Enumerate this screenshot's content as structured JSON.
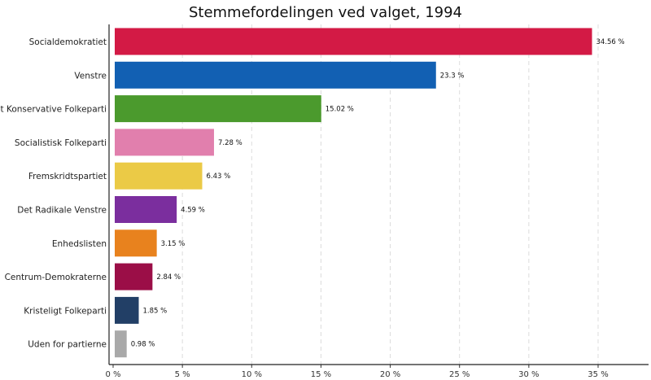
{
  "chart_data": {
    "type": "bar",
    "orientation": "horizontal",
    "title": "Stemmefordelingen ved valget, 1994",
    "xlabel": "",
    "ylabel": "",
    "xlim": [
      0,
      38
    ],
    "ticks": [
      {
        "value": 0,
        "label": "0 %"
      },
      {
        "value": 5,
        "label": "5 %"
      },
      {
        "value": 10,
        "label": "10 %"
      },
      {
        "value": 15,
        "label": "15 %"
      },
      {
        "value": 20,
        "label": "20 %"
      },
      {
        "value": 25,
        "label": "25 %"
      },
      {
        "value": 30,
        "label": "30 %"
      },
      {
        "value": 35,
        "label": "35 %"
      }
    ],
    "grid": "vertical dashed",
    "legend": "none",
    "categories": [
      "Socialdemokratiet",
      "Venstre",
      "Det Konservative Folkeparti",
      "Socialistisk Folkeparti",
      "Fremskridtspartiet",
      "Det Radikale Venstre",
      "Enhedslisten",
      "Centrum-Demokraterne",
      "Kristeligt Folkeparti",
      "Uden for partierne"
    ],
    "values": [
      34.56,
      23.3,
      15.02,
      7.28,
      6.43,
      4.59,
      3.15,
      2.84,
      1.85,
      0.98
    ],
    "value_labels": [
      "34.56 %",
      "23.3 %",
      "15.02 %",
      "7.28 %",
      "6.43 %",
      "4.59 %",
      "3.15 %",
      "2.84 %",
      "1.85 %",
      "0.98 %"
    ],
    "colors": [
      "#D31A45",
      "#1260B3",
      "#4B9A2D",
      "#E17FAD",
      "#EBCA46",
      "#7B2E9E",
      "#E8821E",
      "#9B0E47",
      "#223F66",
      "#A9A9A9"
    ]
  }
}
